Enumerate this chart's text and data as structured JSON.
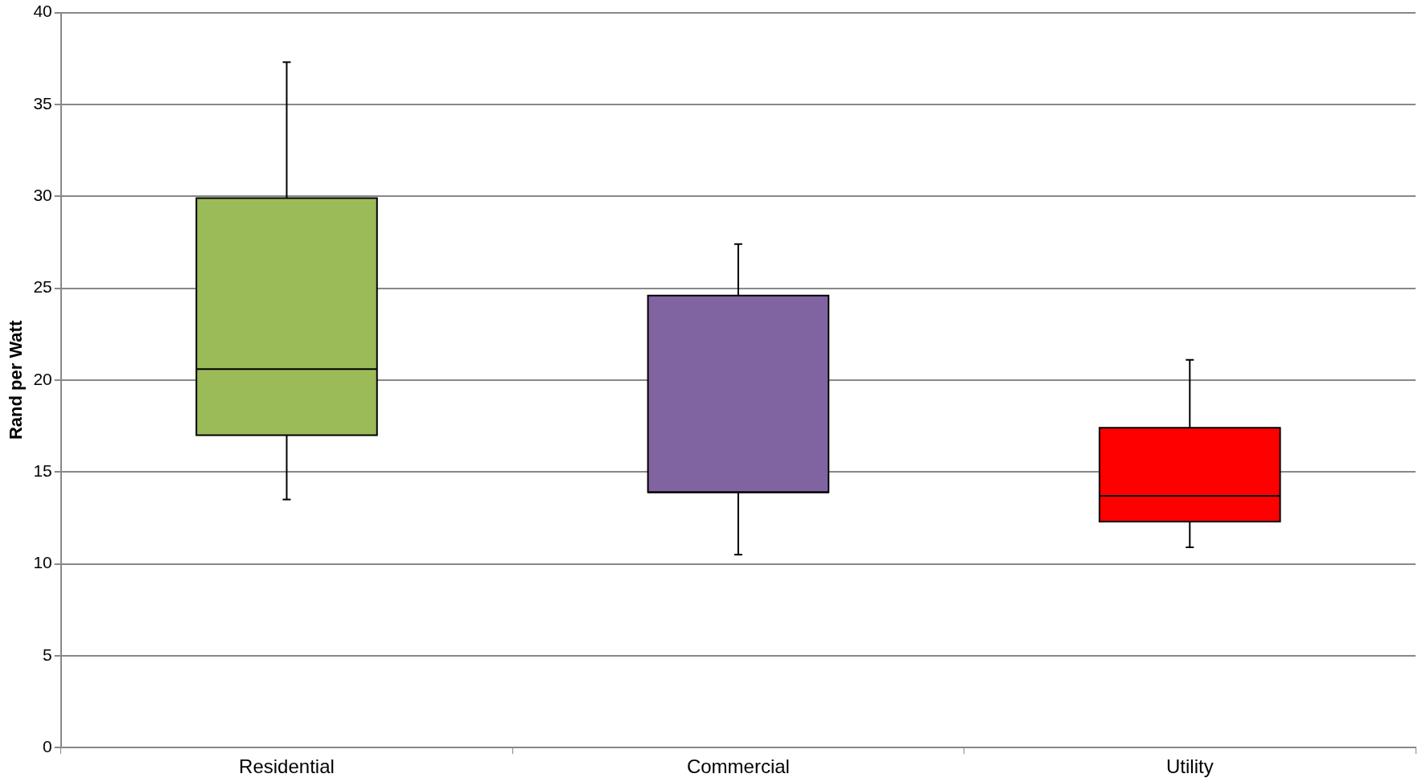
{
  "chart_data": {
    "type": "box",
    "ylabel": "Rand per Watt",
    "categories": [
      "Residential",
      "Commercial",
      "Utility"
    ],
    "boxes": [
      {
        "low": 13.5,
        "q1": 17.0,
        "median": 20.6,
        "q3": 29.9,
        "high": 37.3
      },
      {
        "low": 10.5,
        "q1": 13.9,
        "median": 13.9,
        "q3": 24.6,
        "high": 27.4
      },
      {
        "low": 10.9,
        "q1": 12.3,
        "median": 13.7,
        "q3": 17.4,
        "high": 21.1
      }
    ],
    "colors": [
      "#9bbb59",
      "#8064a2",
      "#ff0000"
    ],
    "ylim": [
      0,
      40
    ],
    "yticks": [
      0,
      5,
      10,
      15,
      20,
      25,
      30,
      35,
      40
    ],
    "grid": "y",
    "legend": false
  }
}
